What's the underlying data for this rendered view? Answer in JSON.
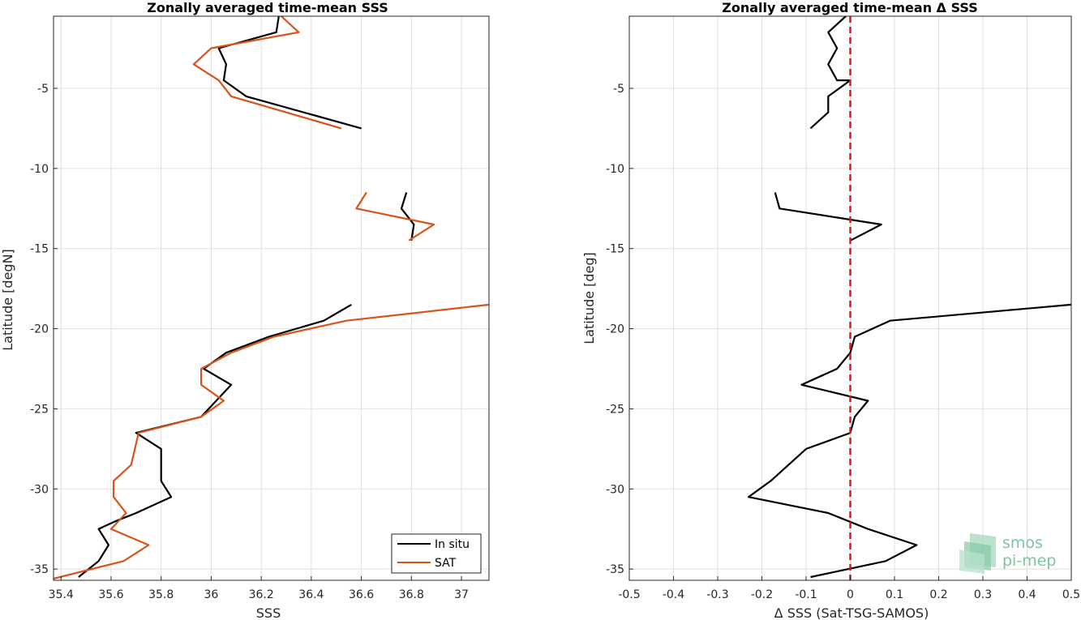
{
  "chart_data": [
    {
      "type": "line",
      "title": "Zonally averaged time-mean SSS",
      "xlabel": "SSS",
      "ylabel": "Latitude [degN]",
      "xlim": [
        35.37,
        37.11
      ],
      "ylim": [
        -35.7,
        -0.5
      ],
      "xticks": [
        "35.4",
        "35.6",
        "35.8",
        "36",
        "36.2",
        "36.4",
        "36.6",
        "36.8",
        "37"
      ],
      "xtick_values": [
        35.4,
        35.6,
        35.8,
        36.0,
        36.2,
        36.4,
        36.6,
        36.8,
        37.0
      ],
      "yticks": [
        "-5",
        "-10",
        "-15",
        "-20",
        "-25",
        "-30",
        "-35"
      ],
      "ytick_values": [
        -5,
        -10,
        -15,
        -20,
        -25,
        -30,
        -35
      ],
      "grid": true,
      "legend": {
        "placement": "bottom-right",
        "entries": [
          "In situ",
          "SAT"
        ]
      },
      "series": [
        {
          "name": "In situ",
          "color": "#000000",
          "segments": [
            [
              [
                36.27,
                -0.5
              ],
              [
                36.26,
                -1.5
              ],
              [
                36.03,
                -2.5
              ],
              [
                36.06,
                -3.5
              ],
              [
                36.05,
                -4.5
              ],
              [
                36.14,
                -5.5
              ],
              [
                36.6,
                -7.5
              ]
            ],
            [
              [
                36.78,
                -11.5
              ],
              [
                36.76,
                -12.5
              ],
              [
                36.81,
                -13.5
              ],
              [
                36.8,
                -14.5
              ]
            ],
            [
              [
                36.56,
                -18.5
              ],
              [
                36.45,
                -19.5
              ],
              [
                36.23,
                -20.5
              ],
              [
                36.06,
                -21.5
              ],
              [
                35.97,
                -22.5
              ],
              [
                36.08,
                -23.5
              ],
              [
                36.02,
                -24.5
              ],
              [
                35.96,
                -25.5
              ],
              [
                35.7,
                -26.5
              ],
              [
                35.8,
                -27.5
              ],
              [
                35.8,
                -28.5
              ],
              [
                35.8,
                -29.5
              ],
              [
                35.84,
                -30.5
              ],
              [
                35.7,
                -31.5
              ],
              [
                35.62,
                -32.0
              ],
              [
                35.55,
                -32.5
              ],
              [
                35.59,
                -33.5
              ],
              [
                35.55,
                -34.5
              ],
              [
                35.47,
                -35.5
              ]
            ]
          ]
        },
        {
          "name": "SAT",
          "color": "#d95319",
          "segments": [
            [
              [
                36.28,
                -0.5
              ],
              [
                36.35,
                -1.5
              ],
              [
                36.0,
                -2.5
              ],
              [
                35.93,
                -3.5
              ],
              [
                36.03,
                -4.5
              ],
              [
                36.08,
                -5.5
              ],
              [
                36.52,
                -7.5
              ]
            ],
            [
              [
                36.62,
                -11.5
              ],
              [
                36.58,
                -12.5
              ],
              [
                36.89,
                -13.5
              ],
              [
                36.79,
                -14.5
              ]
            ],
            [
              [
                37.11,
                -18.5
              ],
              [
                36.54,
                -19.5
              ],
              [
                36.25,
                -20.5
              ],
              [
                36.08,
                -21.5
              ],
              [
                35.96,
                -22.5
              ],
              [
                35.96,
                -23.5
              ],
              [
                36.05,
                -24.5
              ],
              [
                35.96,
                -25.5
              ],
              [
                35.71,
                -26.5
              ],
              [
                35.68,
                -28.5
              ],
              [
                35.61,
                -29.5
              ],
              [
                35.61,
                -30.5
              ],
              [
                35.66,
                -31.5
              ],
              [
                35.6,
                -32.5
              ],
              [
                35.75,
                -33.5
              ],
              [
                35.65,
                -34.5
              ],
              [
                35.37,
                -35.6
              ]
            ]
          ]
        }
      ]
    },
    {
      "type": "line",
      "title": "Zonally averaged time-mean Δ SSS",
      "xlabel": "Δ SSS (Sat-TSG-SAMOS)",
      "ylabel": "Latitude [deg]",
      "xlim": [
        -0.5,
        0.5
      ],
      "ylim": [
        -35.7,
        -0.5
      ],
      "xticks": [
        "-0.5",
        "-0.4",
        "-0.3",
        "-0.2",
        "-0.1",
        "0",
        "0.1",
        "0.2",
        "0.3",
        "0.4",
        "0.5"
      ],
      "xtick_values": [
        -0.5,
        -0.4,
        -0.3,
        -0.2,
        -0.1,
        0,
        0.1,
        0.2,
        0.3,
        0.4,
        0.5
      ],
      "yticks": [
        "-5",
        "-10",
        "-15",
        "-20",
        "-25",
        "-30",
        "-35"
      ],
      "ytick_values": [
        -5,
        -10,
        -15,
        -20,
        -25,
        -30,
        -35
      ],
      "grid": true,
      "reference_line": {
        "x": 0,
        "color": "#ee1111",
        "style": "dashed"
      },
      "series": [
        {
          "color": "#000000",
          "segments": [
            [
              [
                -0.01,
                -0.5
              ],
              [
                -0.05,
                -1.5
              ],
              [
                -0.03,
                -2.5
              ],
              [
                -0.05,
                -3.5
              ],
              [
                -0.03,
                -4.5
              ],
              [
                0.0,
                -4.5
              ],
              [
                -0.05,
                -5.5
              ],
              [
                -0.05,
                -6.5
              ],
              [
                -0.09,
                -7.5
              ]
            ],
            [
              [
                -0.17,
                -11.5
              ],
              [
                -0.16,
                -12.5
              ],
              [
                0.07,
                -13.5
              ],
              [
                0.0,
                -14.5
              ]
            ],
            [
              [
                0.5,
                -18.5
              ],
              [
                0.09,
                -19.5
              ],
              [
                0.01,
                -20.5
              ],
              [
                0.0,
                -21.5
              ],
              [
                -0.03,
                -22.5
              ],
              [
                -0.11,
                -23.5
              ],
              [
                0.04,
                -24.5
              ],
              [
                0.01,
                -25.5
              ],
              [
                0.0,
                -26.5
              ],
              [
                -0.1,
                -27.5
              ],
              [
                -0.18,
                -29.5
              ],
              [
                -0.23,
                -30.5
              ],
              [
                -0.05,
                -31.5
              ],
              [
                0.04,
                -32.5
              ],
              [
                0.15,
                -33.5
              ],
              [
                0.08,
                -34.5
              ],
              [
                -0.09,
                -35.5
              ]
            ]
          ]
        }
      ]
    }
  ],
  "logo": {
    "line1": "smos",
    "line2": "pi-mep"
  }
}
